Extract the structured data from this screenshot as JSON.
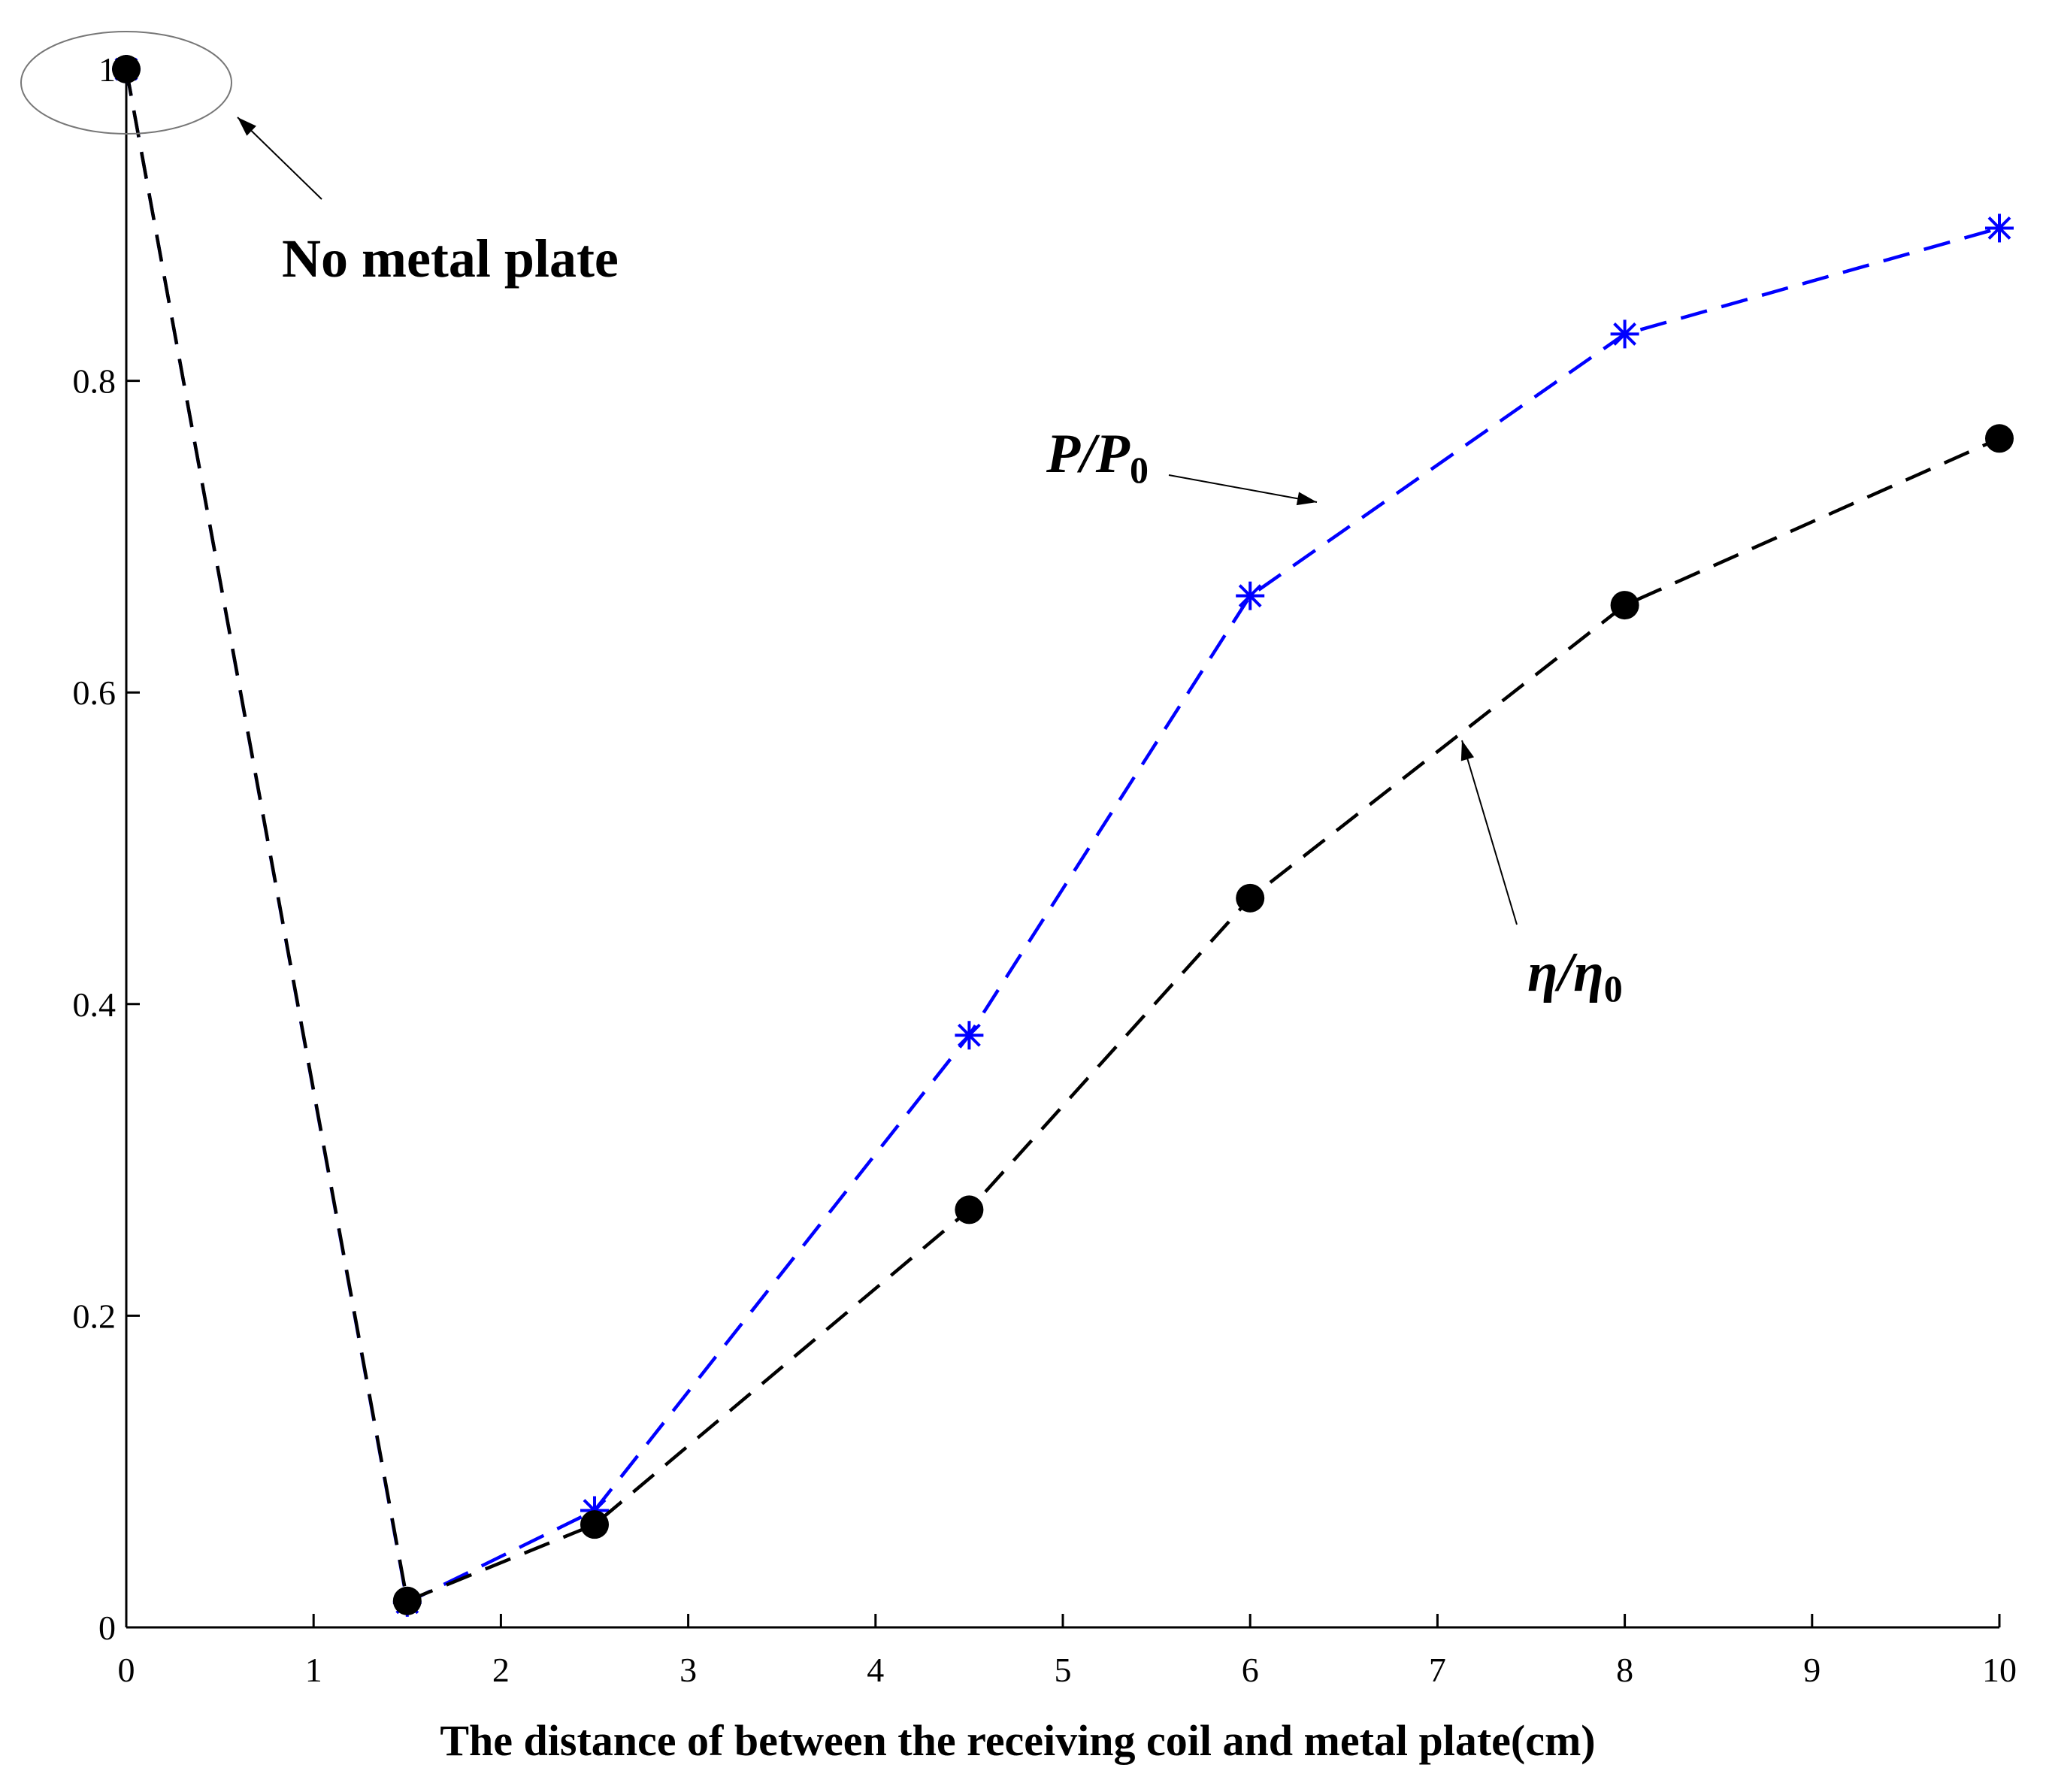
{
  "chart_data": {
    "type": "line",
    "title": "",
    "xlabel": "The distance of between the receiving coil and metal plate(cm)",
    "ylabel": "",
    "xlim": [
      0,
      10
    ],
    "ylim": [
      0,
      1
    ],
    "x_ticks": [
      "0",
      "1",
      "2",
      "3",
      "4",
      "5",
      "6",
      "7",
      "8",
      "9",
      "10"
    ],
    "y_ticks": [
      "0",
      "0.2",
      "0.4",
      "0.6",
      "0.8",
      "1"
    ],
    "x": [
      0,
      1.5,
      2.5,
      4.5,
      6,
      8,
      10
    ],
    "series": [
      {
        "name": "P/P0",
        "label_main": "P/P",
        "label_sub": "0",
        "color": "#0000ff",
        "marker": "asterisk",
        "line_style": "dashed",
        "values": [
          1.0,
          0.016,
          0.075,
          0.38,
          0.662,
          0.83,
          0.898
        ]
      },
      {
        "name": "η/η0",
        "label_main": "η/η",
        "label_sub": "0",
        "color": "#000000",
        "marker": "filled-circle",
        "line_style": "dashed",
        "values": [
          1.0,
          0.017,
          0.066,
          0.268,
          0.468,
          0.656,
          0.763
        ]
      }
    ],
    "annotations": [
      {
        "text": "No metal plate",
        "target_x": 0,
        "target_y": 1.0
      }
    ]
  }
}
